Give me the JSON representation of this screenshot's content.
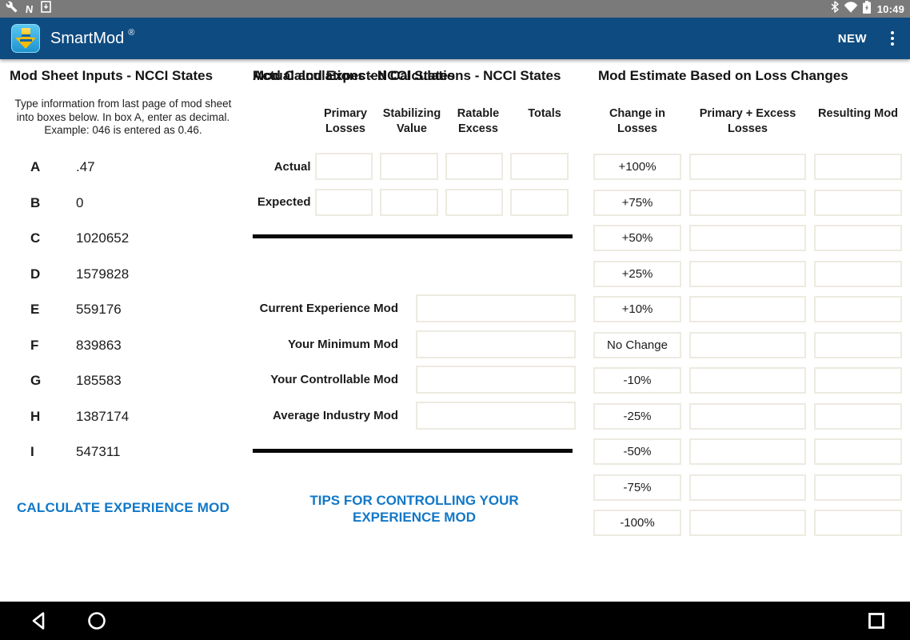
{
  "status_bar": {
    "time": "10:49",
    "left_icons": [
      "wrench-icon",
      "nfc-n-icon",
      "usb-download-icon"
    ],
    "right_icons": [
      "bluetooth-icon",
      "wifi-icon",
      "battery-charging-icon"
    ]
  },
  "app_bar": {
    "title": "SmartMod",
    "reg_mark": "®",
    "action_new": "NEW",
    "overflow_icon": "overflow-menu-icon",
    "logo_icon": "smartmod-logo"
  },
  "inputs_panel": {
    "title": "Mod Sheet Inputs - NCCI States",
    "instructions": "Type information from last page of mod sheet into boxes below. In box A, enter as decimal. Example: 046 is entered as 0.46.",
    "rows": [
      {
        "label": "A",
        "value": ".47"
      },
      {
        "label": "B",
        "value": "0"
      },
      {
        "label": "C",
        "value": "1020652"
      },
      {
        "label": "D",
        "value": "1579828"
      },
      {
        "label": "E",
        "value": "559176"
      },
      {
        "label": "F",
        "value": "839863"
      },
      {
        "label": "G",
        "value": "185583"
      },
      {
        "label": "H",
        "value": "1387174"
      },
      {
        "label": "I",
        "value": "547311"
      }
    ],
    "calculate_button": "CALCULATE EXPERIENCE MOD"
  },
  "calc_panel": {
    "title": "Actual and Expected Calculations - NCCI States",
    "column_headers": [
      "Primary Losses",
      "Stabilizing Value",
      "Ratable Excess",
      "Totals"
    ],
    "row_labels": [
      "Actual",
      "Expected"
    ],
    "mod_section_title": "Mod Calculations - NCCI States",
    "mod_rows": [
      "Current Experience Mod",
      "Your Minimum Mod",
      "Your Controllable Mod",
      "Average Industry Mod"
    ],
    "tips_link": "TIPS FOR CONTROLLING YOUR EXPERIENCE MOD"
  },
  "estimate_panel": {
    "title": "Mod Estimate Based on Loss Changes",
    "column_headers": [
      "Change in Losses",
      "Primary + Excess Losses",
      "Resulting Mod"
    ],
    "change_rows": [
      "+100%",
      "+75%",
      "+50%",
      "+25%",
      "+10%",
      "No Change",
      "-10%",
      "-25%",
      "-50%",
      "-75%",
      "-100%"
    ]
  },
  "nav_bar": {
    "icons": [
      "back-icon",
      "home-icon",
      "recents-icon"
    ]
  },
  "colors": {
    "app_bar_blue": "#0E4B80",
    "status_bar_gray": "#7A7A7A",
    "link_blue": "#1278C8",
    "box_border": "#EDEAE1",
    "divider_black": "#070707",
    "logo_blue": "#2BA7DE",
    "logo_yellow": "#F7BC00"
  }
}
